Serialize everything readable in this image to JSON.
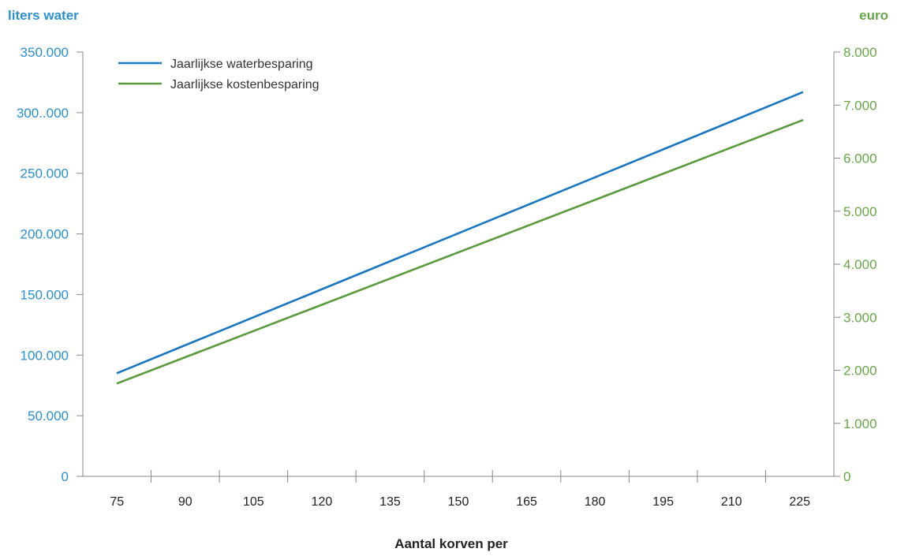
{
  "chart_data": {
    "type": "line",
    "y_left_label": "liters water",
    "y_right_label": "euro",
    "xlabel": "Aantal korven per",
    "x_categories": [
      "75",
      "90",
      "105",
      "120",
      "135",
      "150",
      "165",
      "180",
      "195",
      "210",
      "225"
    ],
    "y_left_ticks": [
      "0",
      "50.000",
      "100.000",
      "150.000",
      "200.000",
      "250.000",
      "300..000",
      "350.000"
    ],
    "y_right_ticks": [
      "0",
      "1.000",
      "2.000",
      "3.000",
      "4.000",
      "5.000",
      "6.000",
      "7.000",
      "8.000"
    ],
    "y_left_lim": [
      0,
      350000
    ],
    "y_right_lim": [
      0,
      8000
    ],
    "x_lim": [
      75,
      225
    ],
    "legend_position": "top-left",
    "grid": false,
    "series": [
      {
        "name": "Jaarlijkse waterbesparing",
        "axis": "left",
        "color": "#1a76bf",
        "points": [
          [
            75,
            85000
          ],
          [
            225,
            317000
          ]
        ]
      },
      {
        "name": "Jaarlijkse kostenbesparing",
        "axis": "right",
        "color": "#5a9a3c",
        "points": [
          [
            75,
            1750
          ],
          [
            225,
            6720
          ]
        ]
      }
    ]
  },
  "colors": {
    "left_axis": "#2e8fc8",
    "right_axis": "#6aa54b",
    "axis_line": "#888888"
  }
}
